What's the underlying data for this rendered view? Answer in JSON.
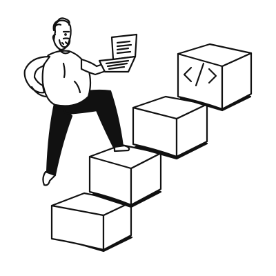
{
  "illustration": {
    "subject": "person-climbing-cube-stairs",
    "colors": {
      "ink": "#111111",
      "paper": "#ffffff"
    },
    "top_cube_icon": "code-brackets-icon",
    "held_item_icon": "laptop-icon"
  }
}
